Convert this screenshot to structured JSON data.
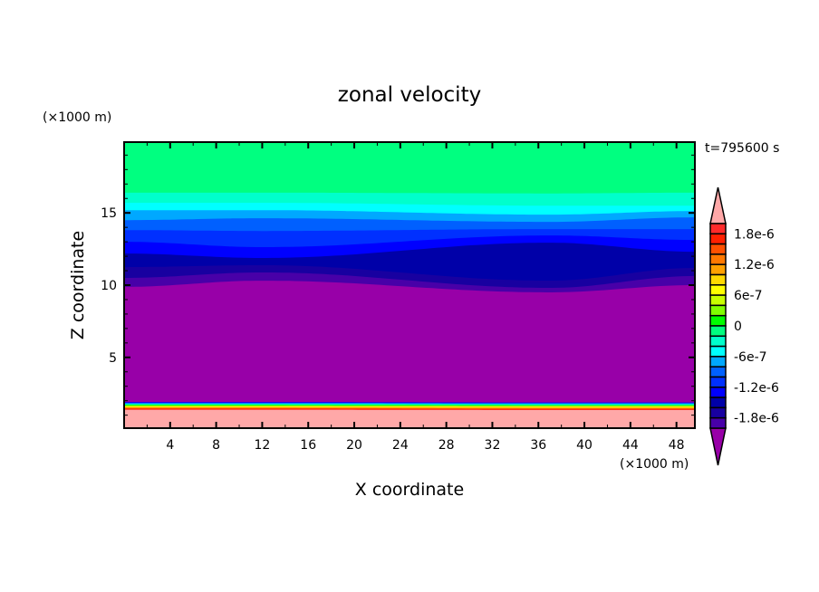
{
  "chart_data": {
    "type": "heatmap",
    "subtype": "filled-contour",
    "title": "zonal velocity",
    "xlabel": "X coordinate",
    "ylabel": "Z coordinate",
    "x_unit_label": "(×1000 m)",
    "y_unit_label": "(×1000 m)",
    "time_label": "t=795600 s",
    "xlim": [
      0,
      49.6
    ],
    "ylim": [
      0.1,
      19.9
    ],
    "x_ticks": [
      4,
      8,
      12,
      16,
      20,
      24,
      28,
      32,
      36,
      40,
      44,
      48
    ],
    "x_tick_labels": [
      "4",
      "8",
      "12",
      "16",
      "20",
      "24",
      "28",
      "32",
      "36",
      "40",
      "44",
      "48"
    ],
    "y_ticks": [
      5,
      10,
      15
    ],
    "y_tick_labels": [
      "5",
      "10",
      "15"
    ],
    "grid": false,
    "colorbar": {
      "levels_top_to_bottom": [
        2e-06,
        1.8e-06,
        1.6e-06,
        1.4e-06,
        1.2e-06,
        1e-06,
        8e-07,
        6e-07,
        4e-07,
        2e-07,
        0,
        -2e-07,
        -4e-07,
        -6e-07,
        -8e-07,
        -1e-06,
        -1.2e-06,
        -1.4e-06,
        -1.6e-06,
        -1.8e-06,
        -2e-06
      ],
      "colors_top_to_bottom": [
        "#ff2a2a",
        "#ff2000",
        "#ff5000",
        "#ff7800",
        "#ffa000",
        "#ffd800",
        "#ffff00",
        "#c8ff00",
        "#80ff00",
        "#00ff00",
        "#00ff80",
        "#00ffcc",
        "#00ffff",
        "#00a8ff",
        "#0060ff",
        "#0030ff",
        "#0000ff",
        "#0000a8",
        "#1800a0",
        "#4800a8"
      ],
      "over_color": "#ffa8a8",
      "under_color": "#9800a8",
      "tick_labels": [
        {
          "value": 1.8e-06,
          "label": "1.8e-6"
        },
        {
          "value": 1.2e-06,
          "label": "1.2e-6"
        },
        {
          "value": 6e-07,
          "label": "6e-7"
        },
        {
          "value": 0,
          "label": "0"
        },
        {
          "value": -6e-07,
          "label": "-6e-7"
        },
        {
          "value": -1.2e-06,
          "label": "-1.2e-6"
        },
        {
          "value": -1.8e-06,
          "label": "-1.8e-6"
        }
      ]
    },
    "boundary_x": [
      0,
      12,
      37,
      49.6
    ],
    "top_color": "#00ff80",
    "bands": [
      {
        "color": "#00ffcc",
        "z": [
          16.4,
          16.4,
          16.35,
          16.4
        ]
      },
      {
        "color": "#00ffff",
        "z": [
          15.7,
          15.7,
          15.5,
          15.5
        ]
      },
      {
        "color": "#00a8ff",
        "z": [
          15.19,
          15.19,
          14.88,
          15.13
        ]
      },
      {
        "color": "#0060ff",
        "z": [
          14.5,
          14.63,
          14.38,
          14.69
        ]
      },
      {
        "color": "#0030ff",
        "z": [
          13.81,
          13.75,
          13.88,
          13.88
        ]
      },
      {
        "color": "#0000ff",
        "z": [
          13.0,
          12.63,
          13.44,
          13.13
        ]
      },
      {
        "color": "#0000a8",
        "z": [
          12.19,
          11.88,
          12.94,
          12.31
        ]
      },
      {
        "color": "#1800a0",
        "z": [
          11.25,
          11.38,
          10.31,
          11.19
        ]
      },
      {
        "color": "#4800a8",
        "z": [
          10.5,
          10.88,
          9.81,
          10.63
        ]
      },
      {
        "color": "#9800a8",
        "z": [
          9.88,
          10.31,
          9.5,
          10.0
        ]
      },
      {
        "color": "#0000ff",
        "z": [
          1.9,
          1.9,
          1.88,
          1.88
        ]
      },
      {
        "color": "#00a8ff",
        "z": [
          1.84,
          1.84,
          1.82,
          1.82
        ]
      },
      {
        "color": "#00ffcc",
        "z": [
          1.78,
          1.78,
          1.76,
          1.76
        ]
      },
      {
        "color": "#00ff00",
        "z": [
          1.72,
          1.72,
          1.7,
          1.7
        ]
      },
      {
        "color": "#c8ff00",
        "z": [
          1.66,
          1.66,
          1.64,
          1.64
        ]
      },
      {
        "color": "#ffd800",
        "z": [
          1.6,
          1.6,
          1.58,
          1.58
        ]
      },
      {
        "color": "#ff7800",
        "z": [
          1.52,
          1.52,
          1.5,
          1.5
        ]
      },
      {
        "color": "#ff2000",
        "z": [
          1.46,
          1.46,
          1.44,
          1.44
        ]
      },
      {
        "color": "#ffa8a8",
        "z": [
          1.38,
          1.38,
          1.36,
          1.36
        ]
      }
    ]
  }
}
